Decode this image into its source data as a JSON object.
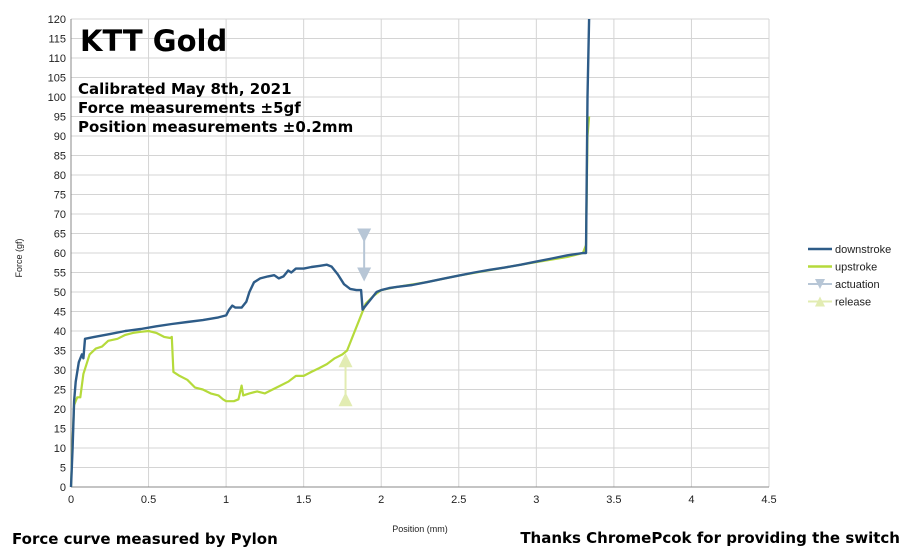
{
  "chart_data": {
    "type": "line",
    "title": "KTT Gold",
    "notes": [
      "Calibrated May 8th, 2021",
      "Force measurements ±5gf",
      "Position measurements ±0.2mm"
    ],
    "xlabel": "Position (mm)",
    "ylabel": "Force (gf)",
    "xlim": [
      0,
      4.5
    ],
    "ylim": [
      0,
      120
    ],
    "xticks": [
      "0",
      "0.5",
      "1",
      "1.5",
      "2",
      "2.5",
      "3",
      "3.5",
      "4",
      "4.5"
    ],
    "yticks": [
      "0",
      "5",
      "10",
      "15",
      "20",
      "25",
      "30",
      "35",
      "40",
      "45",
      "50",
      "55",
      "60",
      "65",
      "70",
      "75",
      "80",
      "85",
      "90",
      "95",
      "100",
      "105",
      "110",
      "115",
      "120"
    ],
    "grid": true,
    "legend_position": "right",
    "series": [
      {
        "name": "downstroke",
        "color": "#2e5c88",
        "type": "line",
        "points": [
          [
            0,
            0
          ],
          [
            0.01,
            10
          ],
          [
            0.02,
            22
          ],
          [
            0.03,
            27
          ],
          [
            0.05,
            32
          ],
          [
            0.07,
            34
          ],
          [
            0.08,
            33
          ],
          [
            0.09,
            38
          ],
          [
            0.15,
            38.5
          ],
          [
            0.25,
            39.2
          ],
          [
            0.35,
            40
          ],
          [
            0.45,
            40.5
          ],
          [
            0.55,
            41.2
          ],
          [
            0.65,
            41.8
          ],
          [
            0.75,
            42.3
          ],
          [
            0.85,
            42.8
          ],
          [
            0.95,
            43.5
          ],
          [
            1.0,
            44
          ],
          [
            1.02,
            45.5
          ],
          [
            1.04,
            46.5
          ],
          [
            1.06,
            46
          ],
          [
            1.1,
            46
          ],
          [
            1.13,
            47.5
          ],
          [
            1.15,
            50
          ],
          [
            1.18,
            52.5
          ],
          [
            1.22,
            53.5
          ],
          [
            1.27,
            54
          ],
          [
            1.31,
            54.3
          ],
          [
            1.34,
            53.5
          ],
          [
            1.37,
            54
          ],
          [
            1.4,
            55.5
          ],
          [
            1.42,
            55
          ],
          [
            1.45,
            56
          ],
          [
            1.5,
            56
          ],
          [
            1.55,
            56.4
          ],
          [
            1.6,
            56.7
          ],
          [
            1.65,
            57
          ],
          [
            1.68,
            56.5
          ],
          [
            1.72,
            54.5
          ],
          [
            1.76,
            52
          ],
          [
            1.8,
            50.8
          ],
          [
            1.84,
            50.5
          ],
          [
            1.87,
            50.5
          ],
          [
            1.88,
            45.5
          ],
          [
            1.9,
            46.5
          ],
          [
            1.94,
            48.5
          ],
          [
            1.97,
            50
          ],
          [
            2.0,
            50.5
          ],
          [
            2.05,
            51
          ],
          [
            2.1,
            51.3
          ],
          [
            2.2,
            51.8
          ],
          [
            2.3,
            52.6
          ],
          [
            2.4,
            53.4
          ],
          [
            2.5,
            54.2
          ],
          [
            2.6,
            55
          ],
          [
            2.7,
            55.7
          ],
          [
            2.8,
            56.3
          ],
          [
            2.9,
            57
          ],
          [
            3.0,
            57.8
          ],
          [
            3.1,
            58.6
          ],
          [
            3.2,
            59.4
          ],
          [
            3.3,
            60
          ],
          [
            3.32,
            60
          ],
          [
            3.33,
            100
          ],
          [
            3.34,
            120
          ]
        ]
      },
      {
        "name": "upstroke",
        "color": "#b5da3b",
        "type": "line",
        "points": [
          [
            0,
            0
          ],
          [
            0.01,
            12
          ],
          [
            0.02,
            21
          ],
          [
            0.04,
            23
          ],
          [
            0.06,
            23
          ],
          [
            0.08,
            29
          ],
          [
            0.12,
            34
          ],
          [
            0.16,
            35.5
          ],
          [
            0.2,
            36
          ],
          [
            0.24,
            37.5
          ],
          [
            0.3,
            38
          ],
          [
            0.35,
            39
          ],
          [
            0.4,
            39.5
          ],
          [
            0.45,
            39.8
          ],
          [
            0.5,
            40
          ],
          [
            0.55,
            39.5
          ],
          [
            0.6,
            38.5
          ],
          [
            0.64,
            38.2
          ],
          [
            0.65,
            38.5
          ],
          [
            0.66,
            29.5
          ],
          [
            0.7,
            28.5
          ],
          [
            0.75,
            27.5
          ],
          [
            0.8,
            25.5
          ],
          [
            0.85,
            25
          ],
          [
            0.9,
            24
          ],
          [
            0.95,
            23.5
          ],
          [
            0.98,
            22.5
          ],
          [
            1.0,
            22
          ],
          [
            1.05,
            22
          ],
          [
            1.08,
            22.5
          ],
          [
            1.1,
            26
          ],
          [
            1.11,
            23.5
          ],
          [
            1.15,
            24
          ],
          [
            1.2,
            24.5
          ],
          [
            1.25,
            24
          ],
          [
            1.3,
            25
          ],
          [
            1.35,
            26
          ],
          [
            1.4,
            27
          ],
          [
            1.45,
            28.5
          ],
          [
            1.5,
            28.5
          ],
          [
            1.55,
            29.5
          ],
          [
            1.6,
            30.5
          ],
          [
            1.65,
            31.5
          ],
          [
            1.7,
            33
          ],
          [
            1.75,
            34
          ],
          [
            1.78,
            35
          ],
          [
            1.82,
            39
          ],
          [
            1.86,
            43
          ],
          [
            1.9,
            47
          ],
          [
            1.95,
            49
          ],
          [
            2.0,
            50.5
          ],
          [
            2.1,
            51.3
          ],
          [
            2.3,
            52.6
          ],
          [
            2.5,
            54.2
          ],
          [
            2.7,
            55.6
          ],
          [
            2.9,
            57
          ],
          [
            3.1,
            58.3
          ],
          [
            3.2,
            59
          ],
          [
            3.3,
            60
          ],
          [
            3.32,
            62
          ],
          [
            3.33,
            90
          ],
          [
            3.34,
            95
          ]
        ]
      },
      {
        "name": "actuation",
        "color": "#b7c6d6",
        "type": "marker",
        "marker": "triangle-down",
        "points": [
          [
            1.89,
            64.5
          ],
          [
            1.89,
            54.5
          ]
        ]
      },
      {
        "name": "release",
        "color": "#e2ecb2",
        "type": "marker",
        "marker": "triangle-up",
        "points": [
          [
            1.77,
            32.5
          ],
          [
            1.77,
            22.5
          ]
        ]
      }
    ]
  },
  "footer": {
    "left": "Force curve measured by Pylon",
    "right": "Thanks ChromePcok for providing the switch"
  }
}
